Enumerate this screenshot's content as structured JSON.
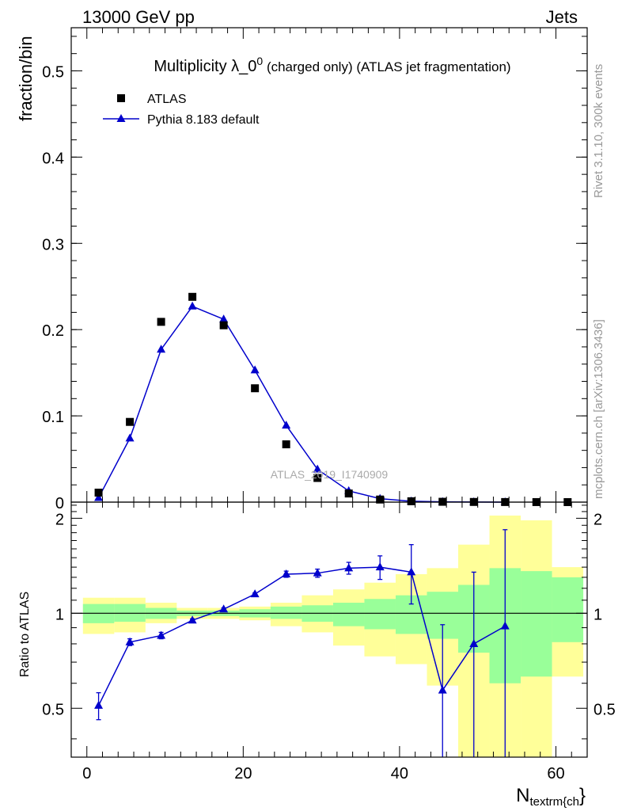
{
  "header": {
    "left": "13000 GeV pp",
    "right": "Jets"
  },
  "side": {
    "rivet": "Rivet 3.1.10,  300k events",
    "mcplots": "mcplots.cern.ch [arXiv:1306.3436]"
  },
  "colors": {
    "mc": "#0000cc",
    "data": "#000000",
    "band_inner": "#99ff99",
    "band_outer": "#ffff99"
  },
  "chart_data": [
    {
      "type": "scatter",
      "panel": "main",
      "title_main": "Multiplicity λ_0",
      "title_sup": "0",
      "title_suffix": " (charged only) (ATLAS jet fragmentation)",
      "ylabel": "fraction/bin",
      "xlim": [
        -2,
        64
      ],
      "ylim": [
        0,
        0.55
      ],
      "yticks": [
        0,
        0.1,
        0.2,
        0.3,
        0.4,
        0.5
      ],
      "ytick_labels": [
        "0",
        "0.1",
        "0.2",
        "0.3",
        "0.4",
        "0.5"
      ],
      "watermark": "ATLAS_2019_I1740909",
      "legend": [
        {
          "label": "ATLAS",
          "marker": "square"
        },
        {
          "label": "Pythia 8.183 default",
          "marker": "triangle"
        }
      ],
      "series": [
        {
          "name": "ATLAS",
          "x": [
            1.5,
            5.5,
            9.5,
            13.5,
            17.5,
            21.5,
            25.5,
            29.5,
            33.5,
            37.5,
            41.5,
            45.5,
            49.5,
            53.5,
            57.5,
            61.5
          ],
          "y": [
            0.011,
            0.093,
            0.209,
            0.238,
            0.205,
            0.132,
            0.067,
            0.028,
            0.01,
            0.003,
            0.001,
            0.0004,
            0.0002,
            0.0001,
            5e-05,
            2e-05
          ]
        },
        {
          "name": "Pythia 8.183 default",
          "x": [
            1.5,
            5.5,
            9.5,
            13.5,
            17.5,
            21.5,
            25.5,
            29.5,
            33.5,
            37.5,
            41.5,
            45.5,
            49.5,
            53.5
          ],
          "y": [
            0.005,
            0.074,
            0.177,
            0.227,
            0.212,
            0.153,
            0.089,
            0.038,
            0.013,
            0.004,
            0.001,
            0.0003,
            0.0001,
            5e-05
          ]
        }
      ]
    },
    {
      "type": "line",
      "panel": "ratio",
      "ylabel": "Ratio to ATLAS",
      "xlabel": "N",
      "xlabel_sub": "textrm{ch",
      "xlabel_tail": "}",
      "xlim": [
        -2,
        64
      ],
      "ylim": [
        0.35,
        2.25
      ],
      "yticks": [
        0.5,
        1,
        2
      ],
      "ytick_labels": [
        "0.5",
        "1",
        "2"
      ],
      "xticks": [
        0,
        20,
        40,
        60
      ],
      "xtick_labels": [
        "0",
        "20",
        "40",
        "60"
      ],
      "bands": [
        {
          "x0": -0.5,
          "x1": 3.5,
          "inner": [
            0.93,
            1.07
          ],
          "outer": [
            0.86,
            1.12
          ]
        },
        {
          "x0": 3.5,
          "x1": 7.5,
          "inner": [
            0.94,
            1.07
          ],
          "outer": [
            0.87,
            1.12
          ]
        },
        {
          "x0": 7.5,
          "x1": 11.5,
          "inner": [
            0.96,
            1.04
          ],
          "outer": [
            0.93,
            1.08
          ]
        },
        {
          "x0": 11.5,
          "x1": 15.5,
          "inner": [
            0.98,
            1.02
          ],
          "outer": [
            0.96,
            1.04
          ]
        },
        {
          "x0": 15.5,
          "x1": 19.5,
          "inner": [
            0.98,
            1.02
          ],
          "outer": [
            0.96,
            1.04
          ]
        },
        {
          "x0": 19.5,
          "x1": 23.5,
          "inner": [
            0.97,
            1.03
          ],
          "outer": [
            0.95,
            1.05
          ]
        },
        {
          "x0": 23.5,
          "x1": 27.5,
          "inner": [
            0.96,
            1.05
          ],
          "outer": [
            0.91,
            1.08
          ]
        },
        {
          "x0": 27.5,
          "x1": 31.5,
          "inner": [
            0.94,
            1.06
          ],
          "outer": [
            0.87,
            1.14
          ]
        },
        {
          "x0": 31.5,
          "x1": 35.5,
          "inner": [
            0.91,
            1.08
          ],
          "outer": [
            0.79,
            1.19
          ]
        },
        {
          "x0": 35.5,
          "x1": 39.5,
          "inner": [
            0.89,
            1.11
          ],
          "outer": [
            0.73,
            1.25
          ]
        },
        {
          "x0": 39.5,
          "x1": 43.5,
          "inner": [
            0.86,
            1.14
          ],
          "outer": [
            0.69,
            1.33
          ]
        },
        {
          "x0": 43.5,
          "x1": 47.5,
          "inner": [
            0.83,
            1.17
          ],
          "outer": [
            0.59,
            1.39
          ]
        },
        {
          "x0": 47.5,
          "x1": 51.5,
          "inner": [
            0.75,
            1.23
          ],
          "outer": [
            0.3,
            1.65
          ]
        },
        {
          "x0": 51.5,
          "x1": 55.5,
          "inner": [
            0.6,
            1.39
          ],
          "outer": [
            0.3,
            2.04
          ]
        },
        {
          "x0": 55.5,
          "x1": 59.5,
          "inner": [
            0.63,
            1.36
          ],
          "outer": [
            0.3,
            1.97
          ]
        },
        {
          "x0": 59.5,
          "x1": 63.5,
          "inner": [
            0.81,
            1.3
          ],
          "outer": [
            0.63,
            1.4
          ]
        }
      ],
      "ratio": {
        "x": [
          1.5,
          5.5,
          9.5,
          13.5,
          17.5,
          21.5,
          25.5,
          29.5,
          33.5,
          37.5,
          41.5,
          45.5,
          49.5,
          53.5
        ],
        "y": [
          0.51,
          0.81,
          0.85,
          0.95,
          1.03,
          1.15,
          1.33,
          1.34,
          1.39,
          1.4,
          1.35,
          0.57,
          0.8,
          0.91
        ],
        "err_lo": [
          0.05,
          0.02,
          0.02,
          0.01,
          0.01,
          0.01,
          0.03,
          0.04,
          0.06,
          0.12,
          0.28,
          0.35,
          0.55,
          0.6
        ],
        "err_hi": [
          0.05,
          0.02,
          0.02,
          0.01,
          0.01,
          0.01,
          0.03,
          0.04,
          0.06,
          0.12,
          0.3,
          0.35,
          0.55,
          0.93
        ]
      }
    }
  ]
}
